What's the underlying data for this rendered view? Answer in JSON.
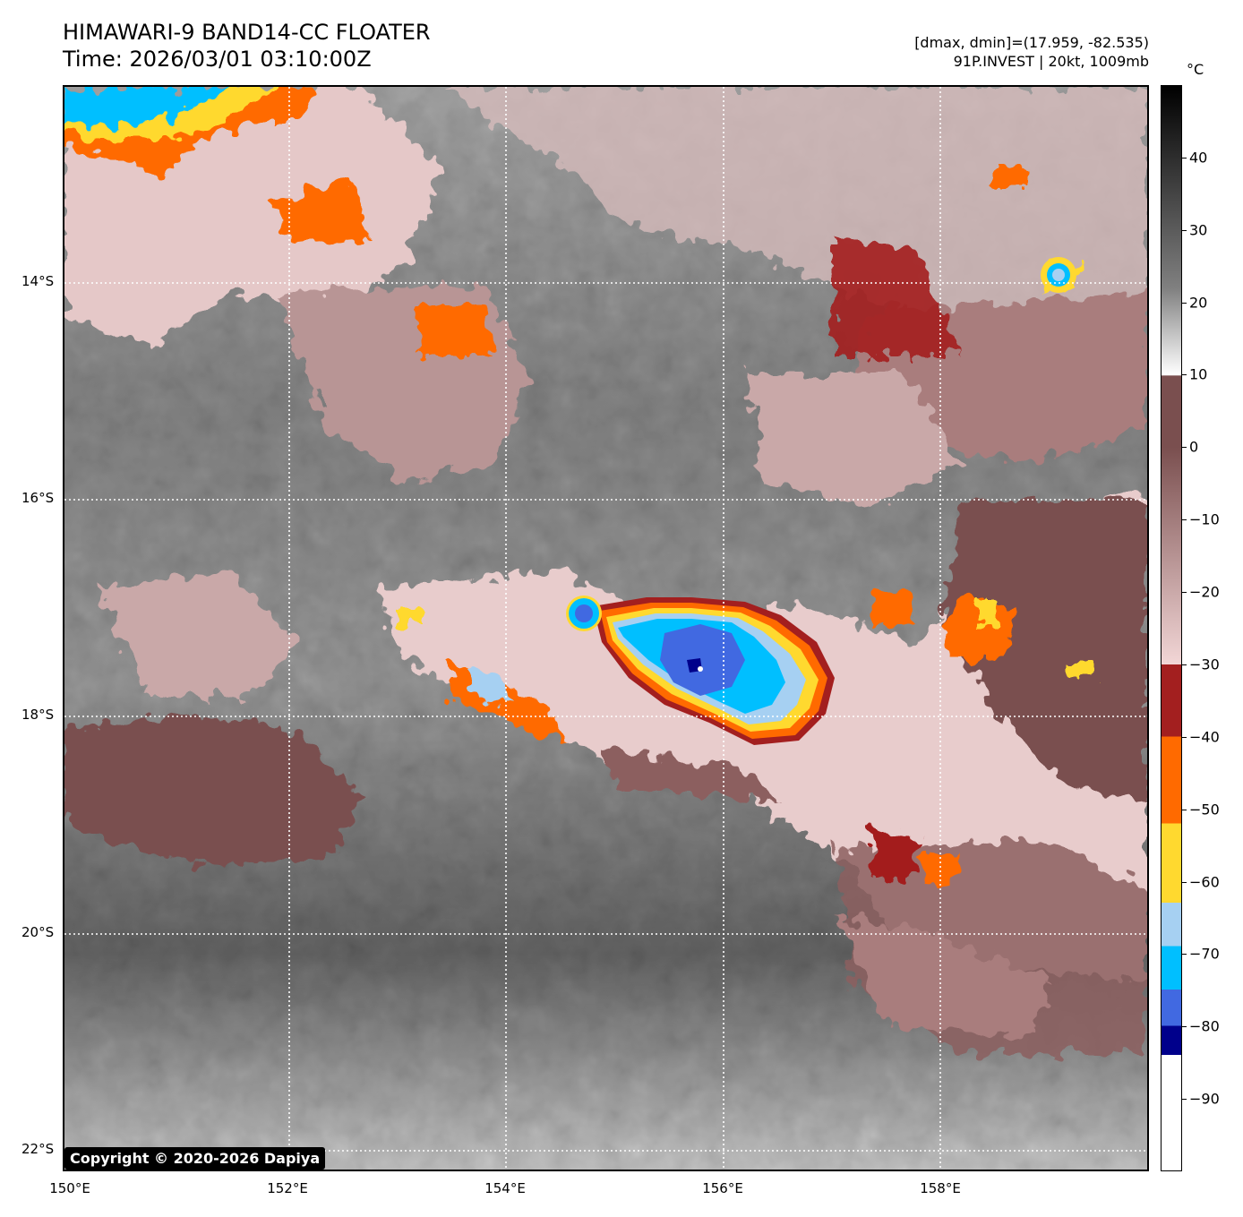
{
  "header": {
    "title_line1": "HIMAWARI-9 BAND14-CC FLOATER",
    "title_line2": "Time: 2026/03/01 03:10:00Z",
    "info_line1": "[dmax, dmin]=(17.959, -82.535)",
    "info_line2": "91P.INVEST | 20kt, 1009mb"
  },
  "map": {
    "lat_labels": [
      "14°S",
      "16°S",
      "18°S",
      "20°S",
      "22°S"
    ],
    "lon_labels": [
      "150°E",
      "152°E",
      "154°E",
      "156°E",
      "158°E"
    ],
    "lat_values": [
      -14,
      -16,
      -18,
      -20,
      -22
    ],
    "lon_values": [
      150,
      152,
      154,
      156,
      158
    ],
    "extent": {
      "lon_min": 150,
      "lon_max": 160,
      "lat_min": -22.2,
      "lat_max": -12.2
    },
    "copyright": "Copyright © 2020-2026 Dapiya",
    "grid": true
  },
  "colorbar": {
    "unit": "°C",
    "ticks": [
      40,
      30,
      20,
      10,
      0,
      -10,
      -20,
      -30,
      -40,
      -50,
      -60,
      -70,
      -80,
      -90
    ],
    "range": [
      -100,
      50
    ],
    "colors": {
      "black_top": "#000000",
      "gray_mid": "#808080",
      "white": "#ffffff",
      "brown": "#7a4f4f",
      "pink": "#f2d6d6",
      "dark_red": "#a31f1f",
      "orange": "#ff6a00",
      "yellow": "#ffd92f",
      "light_blue": "#a6d0f2",
      "cyan": "#00bfff",
      "royal_blue": "#4169e1",
      "navy": "#00008b"
    }
  }
}
